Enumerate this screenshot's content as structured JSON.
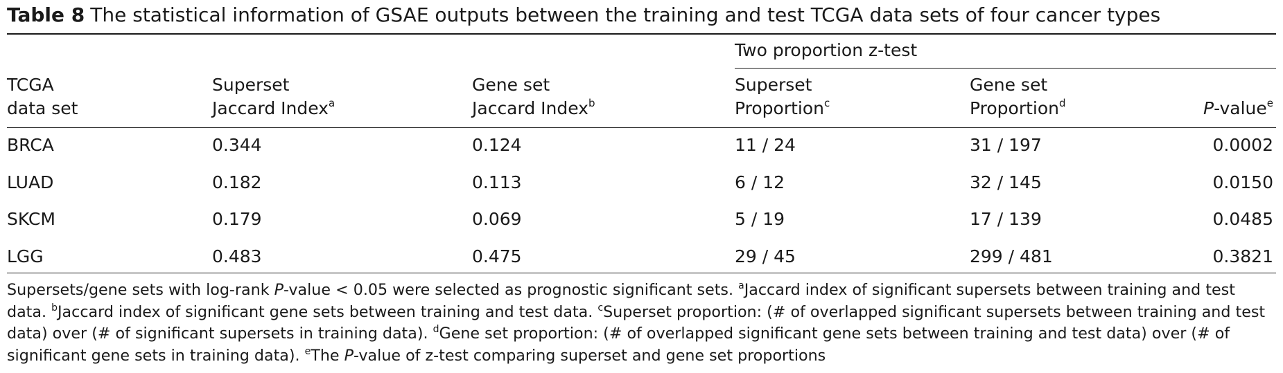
{
  "caption": {
    "label": "Table 8",
    "text": "The statistical information of GSAE outputs between the training and test TCGA data sets of four cancer types"
  },
  "header": {
    "group_title": "Two proportion z-test",
    "col1": {
      "line1": "TCGA",
      "line2": "data set"
    },
    "col2": {
      "line1": "Superset",
      "line2": "Jaccard Index",
      "sup": "a"
    },
    "col3": {
      "line1": "Gene set",
      "line2": "Jaccard Index",
      "sup": "b"
    },
    "col4": {
      "line1": "Superset",
      "line2": "Proportion",
      "sup": "c"
    },
    "col5": {
      "line1": "Gene set",
      "line2": "Proportion",
      "sup": "d"
    },
    "col6": {
      "italic": "P",
      "rest": "-value",
      "sup": "e"
    }
  },
  "rows": [
    {
      "dataset": "BRCA",
      "superset_jaccard": "0.344",
      "geneset_jaccard": "0.124",
      "superset_prop": "11 / 24",
      "geneset_prop": "31 / 197",
      "pvalue": "0.0002"
    },
    {
      "dataset": "LUAD",
      "superset_jaccard": "0.182",
      "geneset_jaccard": "0.113",
      "superset_prop": "6 / 12",
      "geneset_prop": "32 / 145",
      "pvalue": "0.0150"
    },
    {
      "dataset": "SKCM",
      "superset_jaccard": "0.179",
      "geneset_jaccard": "0.069",
      "superset_prop": "5 / 19",
      "geneset_prop": "17 / 139",
      "pvalue": "0.0485"
    },
    {
      "dataset": "LGG",
      "superset_jaccard": "0.483",
      "geneset_jaccard": "0.475",
      "superset_prop": "29 / 45",
      "geneset_prop": "299 / 481",
      "pvalue": "0.3821"
    }
  ],
  "footnote": {
    "intro_a": "Supersets/gene sets with log-rank ",
    "intro_p": "P",
    "intro_b": "-value < 0.05 were selected as prognostic significant sets. ",
    "sup_a": "a",
    "note_a": "Jaccard index of significant supersets between training and test data. ",
    "sup_b": "b",
    "note_b": "Jaccard index of significant gene sets between training and test data. ",
    "sup_c": "c",
    "note_c": "Superset proportion: (# of overlapped significant supersets between training and test data) over (# of significant supersets in training data). ",
    "sup_d": "d",
    "note_d": "Gene set proportion: (# of overlapped significant gene sets between training and test data) over (# of significant gene sets in training data). ",
    "sup_e": "e",
    "note_e_a": "The ",
    "note_e_p": "P",
    "note_e_b": "-value of z-test comparing superset and gene set proportions"
  }
}
